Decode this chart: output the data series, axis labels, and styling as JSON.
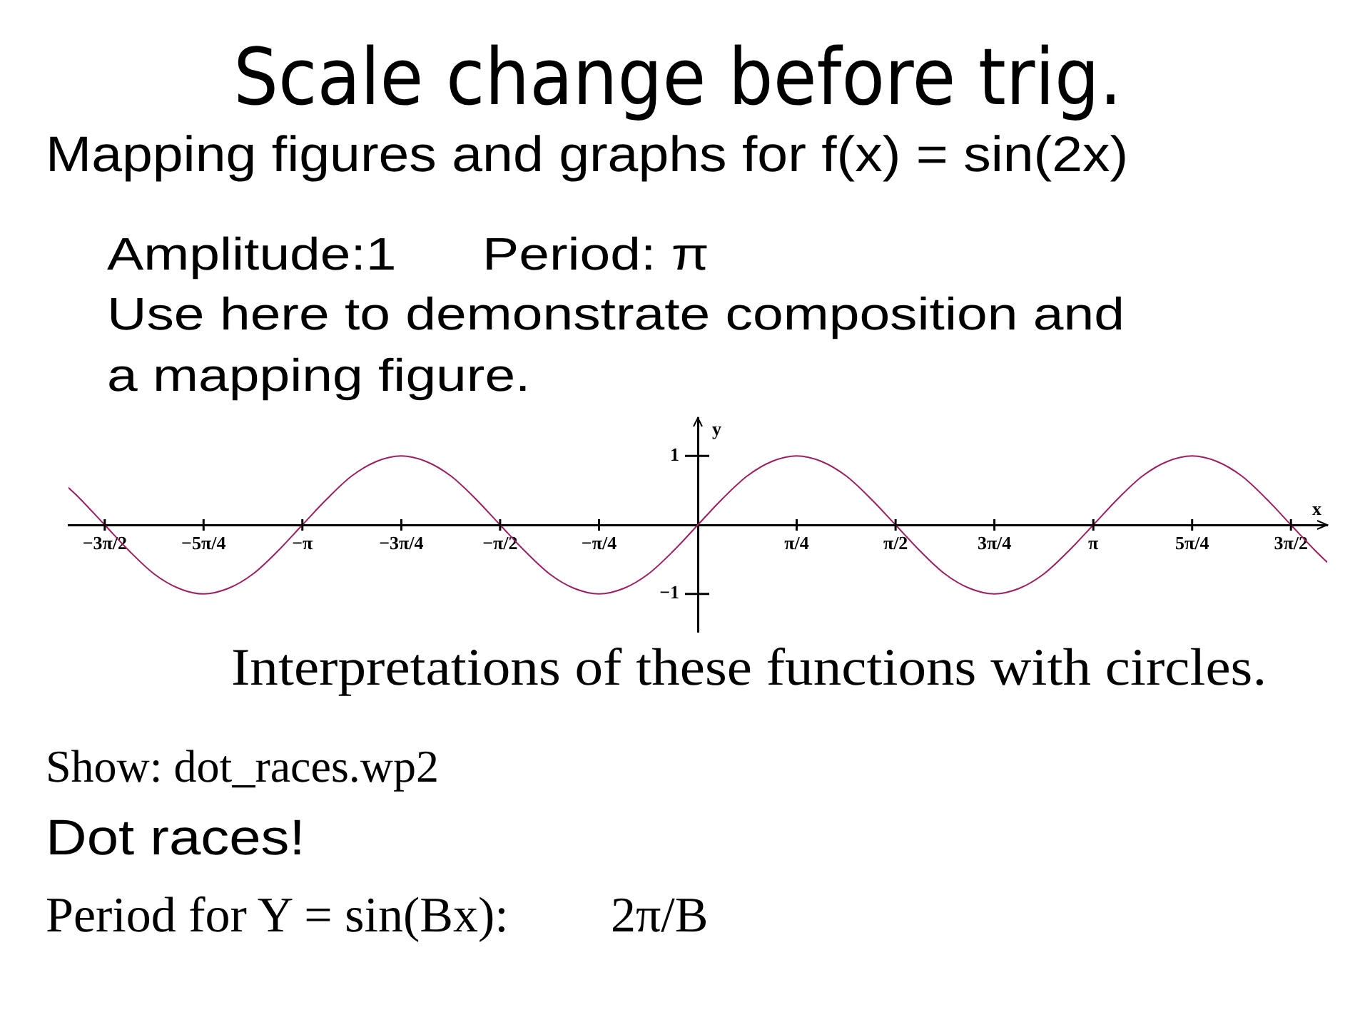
{
  "chart_data": {
    "type": "line",
    "title": "Scale change before trig.",
    "subtitle": "Mapping figures and graphs for f(x) = sin(2x)",
    "xlabel": "x",
    "ylabel": "y",
    "annotations": [
      "Amplitude:1",
      "Period: π",
      "Use here to demonstrate composition and a mapping figure.",
      "Interpretations of these functions with circles.",
      "Show: dot_races.wp2",
      "Dot races!",
      "Period for Y = sin(Bx):",
      "2π/B"
    ],
    "x": [
      -5,
      -4.909,
      -4.712,
      -4.516,
      -4.32,
      -4.123,
      -3.927,
      -3.731,
      -3.534,
      -3.338,
      -3.142,
      -2.945,
      -2.749,
      -2.553,
      -2.356,
      -2.16,
      -1.963,
      -1.767,
      -1.571,
      -1.374,
      -1.178,
      -0.982,
      -0.785,
      -0.589,
      -0.393,
      -0.196,
      0,
      0.196,
      0.393,
      0.589,
      0.785,
      0.982,
      1.178,
      1.374,
      1.571,
      1.767,
      1.963,
      2.16,
      2.356,
      2.553,
      2.749,
      2.945,
      3.142,
      3.338,
      3.534,
      3.731,
      3.927,
      4.123,
      4.32,
      4.516,
      4.712,
      4.909,
      5
    ],
    "values": [
      0.54,
      0.38,
      0,
      -0.38,
      -0.71,
      -0.92,
      -1,
      -0.92,
      -0.71,
      -0.38,
      0,
      0.38,
      0.71,
      0.92,
      1,
      0.92,
      0.71,
      0.38,
      0,
      -0.38,
      -0.71,
      -0.92,
      -1,
      -0.92,
      -0.71,
      -0.38,
      0,
      0.38,
      0.71,
      0.92,
      1,
      0.92,
      0.71,
      0.38,
      0,
      -0.38,
      -0.71,
      -0.92,
      -1,
      -0.92,
      -0.71,
      -0.38,
      0,
      0.38,
      0.71,
      0.92,
      1,
      0.92,
      0.71,
      0.38,
      0,
      -0.38,
      -0.54
    ],
    "color": "#9b2062",
    "marker": "none",
    "line_style": "solid",
    "xlim": [
      -5,
      5
    ],
    "ylim": [
      -1.55,
      1.55
    ],
    "xticks": [
      {
        "value": -4.712,
        "label": "−3π/2"
      },
      {
        "value": -3.927,
        "label": "−5π/4"
      },
      {
        "value": -3.142,
        "label": "−π"
      },
      {
        "value": -2.356,
        "label": "−3π/4"
      },
      {
        "value": -1.571,
        "label": "−π/2"
      },
      {
        "value": -0.785,
        "label": "−π/4"
      },
      {
        "value": 0.785,
        "label": "π/4"
      },
      {
        "value": 1.571,
        "label": "π/2"
      },
      {
        "value": 2.356,
        "label": "3π/4"
      },
      {
        "value": 3.142,
        "label": "π"
      },
      {
        "value": 3.927,
        "label": "5π/4"
      },
      {
        "value": 4.712,
        "label": "3π/2"
      }
    ],
    "yticks": [
      1,
      {
        "value": -1,
        "label": "−1"
      }
    ]
  }
}
